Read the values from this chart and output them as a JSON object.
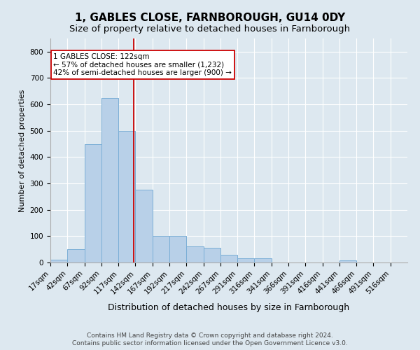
{
  "title1": "1, GABLES CLOSE, FARNBOROUGH, GU14 0DY",
  "title2": "Size of property relative to detached houses in Farnborough",
  "xlabel": "Distribution of detached houses by size in Farnborough",
  "ylabel": "Number of detached properties",
  "footnote1": "Contains HM Land Registry data © Crown copyright and database right 2024.",
  "footnote2": "Contains public sector information licensed under the Open Government Licence v3.0.",
  "bin_labels": [
    "17sqm",
    "42sqm",
    "67sqm",
    "92sqm",
    "117sqm",
    "142sqm",
    "167sqm",
    "192sqm",
    "217sqm",
    "242sqm",
    "267sqm",
    "291sqm",
    "316sqm",
    "341sqm",
    "366sqm",
    "391sqm",
    "416sqm",
    "441sqm",
    "466sqm",
    "491sqm",
    "516sqm"
  ],
  "bar_values": [
    10,
    50,
    450,
    625,
    500,
    275,
    100,
    100,
    60,
    55,
    30,
    15,
    15,
    0,
    0,
    0,
    0,
    8,
    0,
    0,
    0
  ],
  "bar_color": "#b8d0e8",
  "bar_edgecolor": "#7aaed6",
  "property_line_x": 4.88,
  "property_line_color": "#cc0000",
  "annotation_text": "1 GABLES CLOSE: 122sqm\n← 57% of detached houses are smaller (1,232)\n42% of semi-detached houses are larger (900) →",
  "annotation_box_facecolor": "#ffffff",
  "annotation_box_edgecolor": "#cc0000",
  "ylim": [
    0,
    850
  ],
  "background_color": "#dde8f0",
  "grid_color": "#ffffff",
  "fig_facecolor": "#dde8f0",
  "title_fontsize": 11,
  "subtitle_fontsize": 9.5,
  "ylabel_fontsize": 8,
  "xlabel_fontsize": 9,
  "tick_fontsize": 7.5,
  "annot_fontsize": 7.5,
  "footnote_fontsize": 6.5
}
